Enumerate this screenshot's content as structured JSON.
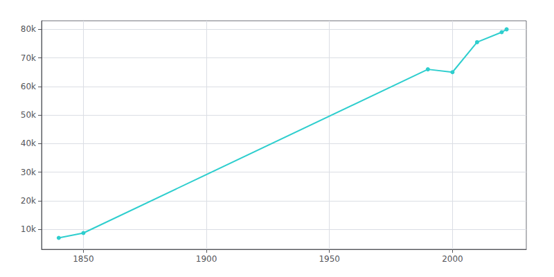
{
  "chart_data": {
    "type": "line",
    "x": [
      1840,
      1850,
      1990,
      2000,
      2010,
      2020,
      2022
    ],
    "values": [
      7000,
      8700,
      66000,
      65000,
      75500,
      79000,
      80000
    ],
    "color": "#2ecece",
    "marker": "circle",
    "xlim": [
      1833,
      2030
    ],
    "xticks": [
      1850,
      1900,
      1950,
      2000
    ],
    "ylim": [
      3000,
      83000
    ],
    "yticks": [
      {
        "value": 10000,
        "label": "10k"
      },
      {
        "value": 20000,
        "label": "20k"
      },
      {
        "value": 30000,
        "label": "30k"
      },
      {
        "value": 40000,
        "label": "40k"
      },
      {
        "value": 50000,
        "label": "50k"
      },
      {
        "value": 60000,
        "label": "60k"
      },
      {
        "value": 70000,
        "label": "70k"
      },
      {
        "value": 80000,
        "label": "80k"
      }
    ],
    "grid": true
  }
}
